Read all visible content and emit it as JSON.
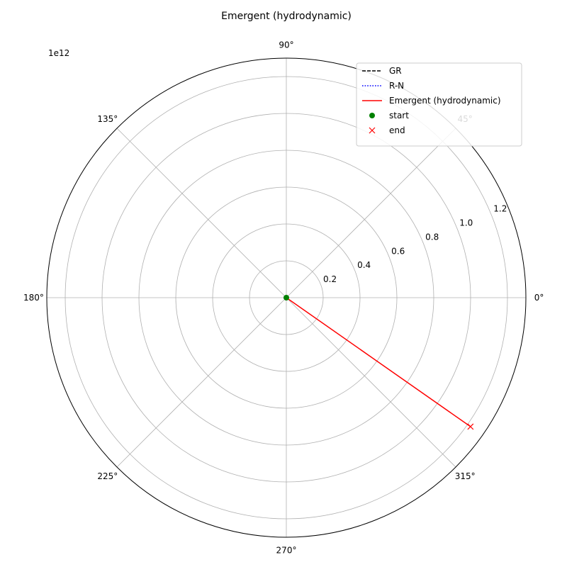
{
  "chart_data": {
    "type": "polar",
    "title": "Emergent (hydrodynamic)",
    "offset_label": "1e12",
    "r_scale": 1000000000000.0,
    "rlim": [
      0,
      1.3
    ],
    "r_ticks": [
      0.2,
      0.4,
      0.6,
      0.8,
      1.0,
      1.2
    ],
    "r_tick_labels": [
      "0.2",
      "0.4",
      "0.6",
      "0.8",
      "1.0",
      "1.2"
    ],
    "theta_ticks": [
      0,
      45,
      90,
      135,
      180,
      225,
      270,
      315
    ],
    "theta_tick_labels": [
      "0°",
      "45°",
      "90°",
      "135°",
      "180°",
      "225°",
      "270°",
      "315°"
    ],
    "grid": true,
    "legend_position": "top-right",
    "series": [
      {
        "name": "GR",
        "color": "#000000",
        "style": "dashed",
        "points": []
      },
      {
        "name": "R-N",
        "color": "#0000ff",
        "style": "dotted",
        "points": []
      },
      {
        "name": "Emergent (hydrodynamic)",
        "color": "#ff0000",
        "style": "solid",
        "points": [
          {
            "theta": 0,
            "r": 0.0
          },
          {
            "theta": -35,
            "r": 1.22
          }
        ]
      }
    ],
    "markers": [
      {
        "name": "start",
        "color": "#008000",
        "symbol": "circle",
        "theta": 0,
        "r": 0.0
      },
      {
        "name": "end",
        "color": "#ff0000",
        "symbol": "x",
        "theta": -35,
        "r": 1.22
      }
    ]
  }
}
